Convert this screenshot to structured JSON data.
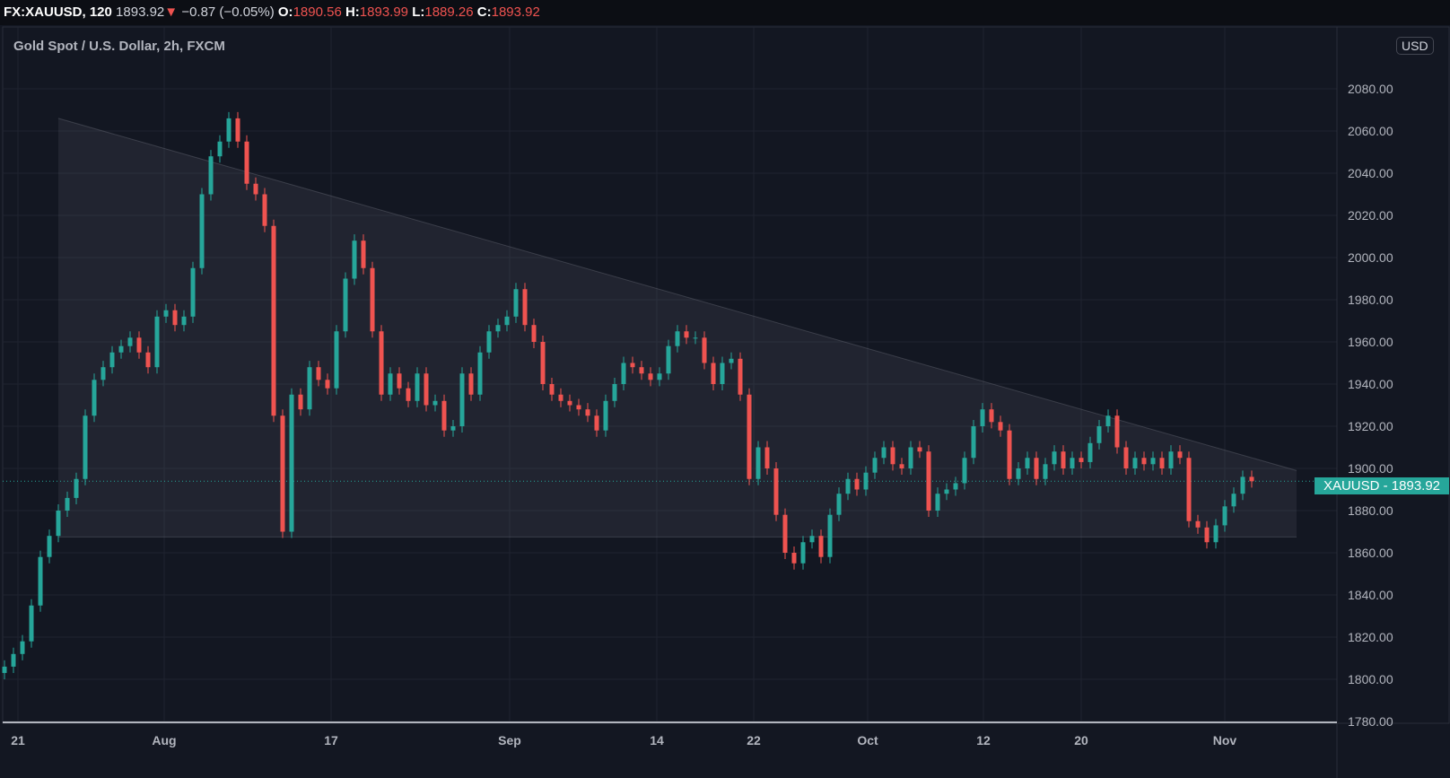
{
  "header": {
    "symbol": "FX:XAUUSD, 120",
    "last": "1893.92",
    "change": "−0.87 (−0.05%)",
    "o_label": "O:",
    "o": "1890.56",
    "h_label": "H:",
    "h": "1893.99",
    "l_label": "L:",
    "l": "1889.26",
    "c_label": "C:",
    "c": "1893.92",
    "direction_icon": "triangle-down"
  },
  "subtitle": "Gold Spot / U.S. Dollar, 2h, FXCM",
  "currency": "USD",
  "last_price_label": "XAUUSD - 1893.92",
  "colors": {
    "bg": "#131722",
    "up": "#26a69a",
    "down": "#ef5350",
    "grid": "#1f2330"
  },
  "chart_data": {
    "type": "candlestick",
    "ylim": [
      1780,
      2100
    ],
    "yticks": [
      "1780.00",
      "1800.00",
      "1820.00",
      "1840.00",
      "1860.00",
      "1880.00",
      "1900.00",
      "1920.00",
      "1940.00",
      "1960.00",
      "1980.00",
      "2000.00",
      "2020.00",
      "2040.00",
      "2060.00",
      "2080.00"
    ],
    "xticks": [
      {
        "label": "21",
        "index": 1.5
      },
      {
        "label": "Aug",
        "index": 17.8
      },
      {
        "label": "17",
        "index": 36.4
      },
      {
        "label": "Sep",
        "index": 56.3
      },
      {
        "label": "14",
        "index": 72.7
      },
      {
        "label": "22",
        "index": 83.5
      },
      {
        "label": "Oct",
        "index": 96.2
      },
      {
        "label": "12",
        "index": 109.1
      },
      {
        "label": "20",
        "index": 120
      },
      {
        "label": "Nov",
        "index": 136
      }
    ],
    "closes": [
      1806,
      1812,
      1818,
      1835,
      1858,
      1868,
      1880,
      1886,
      1895,
      1925,
      1942,
      1948,
      1955,
      1958,
      1962,
      1955,
      1948,
      1972,
      1975,
      1968,
      1972,
      1995,
      2030,
      2048,
      2055,
      2066,
      2055,
      2035,
      2030,
      2015,
      1925,
      1870,
      1935,
      1928,
      1948,
      1942,
      1938,
      1965,
      1990,
      2008,
      1995,
      1965,
      1935,
      1945,
      1938,
      1932,
      1945,
      1930,
      1932,
      1918,
      1920,
      1945,
      1935,
      1955,
      1965,
      1968,
      1972,
      1985,
      1968,
      1960,
      1940,
      1935,
      1932,
      1930,
      1928,
      1925,
      1918,
      1932,
      1940,
      1950,
      1948,
      1945,
      1942,
      1945,
      1958,
      1965,
      1962,
      1962,
      1950,
      1940,
      1950,
      1952,
      1935,
      1895,
      1910,
      1900,
      1878,
      1860,
      1855,
      1865,
      1868,
      1858,
      1878,
      1888,
      1895,
      1890,
      1898,
      1905,
      1910,
      1902,
      1900,
      1910,
      1908,
      1880,
      1888,
      1890,
      1893,
      1905,
      1920,
      1928,
      1922,
      1918,
      1895,
      1900,
      1905,
      1895,
      1902,
      1908,
      1900,
      1905,
      1903,
      1912,
      1920,
      1925,
      1910,
      1900,
      1905,
      1902,
      1905,
      1900,
      1908,
      1905,
      1875,
      1872,
      1865,
      1873,
      1882,
      1888,
      1896,
      1893.92
    ],
    "last_price": 1893.92,
    "triangle": {
      "start_index": 6,
      "end_index": 144,
      "upper_start": 2066,
      "upper_end": 1899,
      "lower": 1867.5
    }
  }
}
